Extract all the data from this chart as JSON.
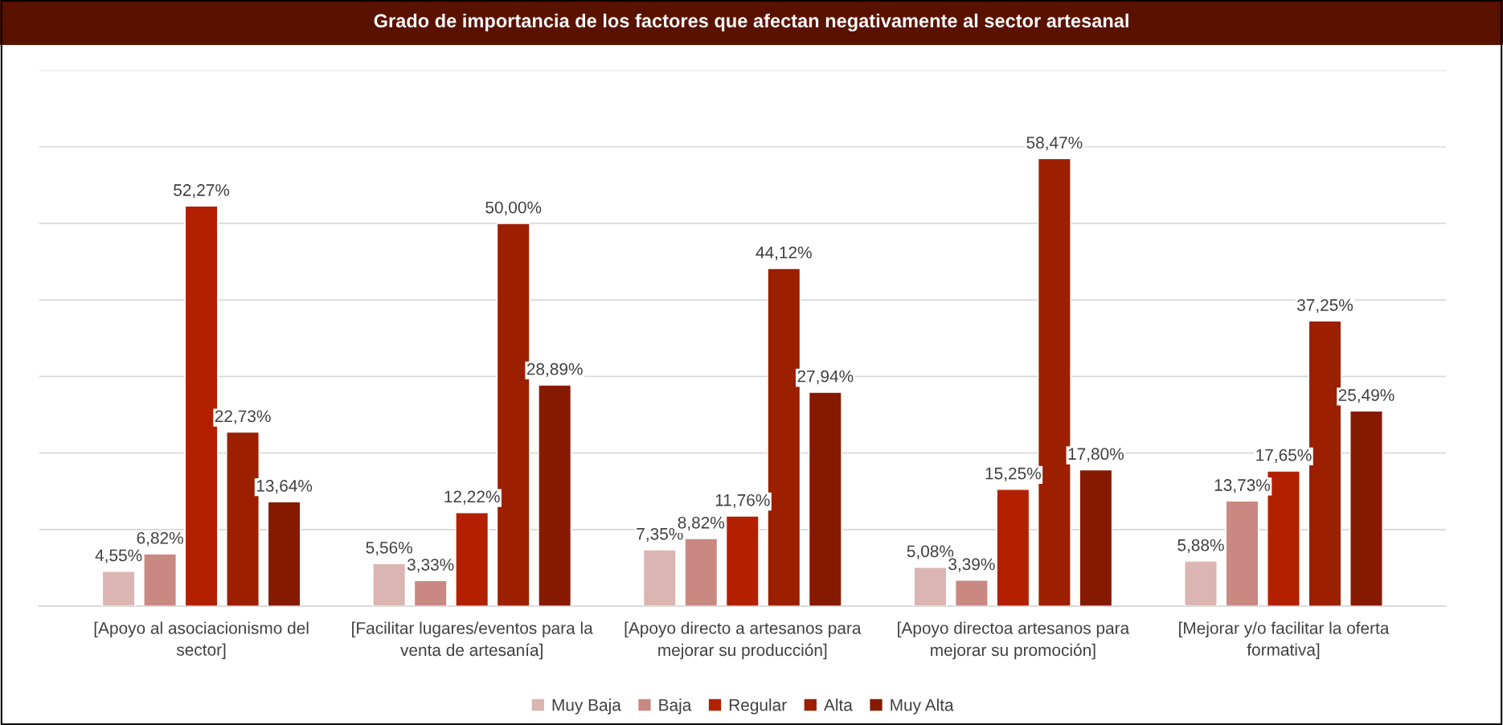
{
  "chart_data": {
    "type": "bar",
    "title": "Grado de importancia de los factores que afectan negativamente al sector artesanal",
    "categories": [
      "[Apoyo al asociacionismo del sector]",
      "[Facilitar lugares/eventos para la venta de artesanía]",
      "[Apoyo directo a artesanos para mejorar su producción]",
      "[Apoyo directoa artesanos para mejorar su promoción]",
      "[Mejorar y/o facilitar la oferta formativa]"
    ],
    "series": [
      {
        "name": "Muy Baja",
        "color": "#dbb5b1",
        "values": [
          4.55,
          5.56,
          7.35,
          5.08,
          5.88
        ],
        "value_labels": [
          "4,55%",
          "5,56%",
          "7,35%",
          "5,08%",
          "5,88%"
        ]
      },
      {
        "name": "Baja",
        "color": "#c98882",
        "values": [
          6.82,
          3.33,
          8.82,
          3.39,
          13.73
        ],
        "value_labels": [
          "6,82%",
          "3,33%",
          "8,82%",
          "3,39%",
          "13,73%"
        ]
      },
      {
        "name": "Regular",
        "color": "#b22000",
        "values": [
          52.27,
          12.22,
          11.76,
          15.25,
          17.65
        ],
        "value_labels": [
          "52,27%",
          "12,22%",
          "11,76%",
          "15,25%",
          "17,65%"
        ]
      },
      {
        "name": "Alta",
        "color": "#9c1f00",
        "values": [
          22.73,
          50.0,
          44.12,
          58.47,
          37.25
        ],
        "value_labels": [
          "22,73%",
          "50,00%",
          "44,12%",
          "58,47%",
          "37,25%"
        ]
      },
      {
        "name": "Muy Alta",
        "color": "#861a00",
        "values": [
          13.64,
          28.89,
          27.94,
          17.8,
          25.49
        ],
        "value_labels": [
          "13,64%",
          "28,89%",
          "27,94%",
          "17,80%",
          "25,49%"
        ]
      }
    ],
    "ylim": [
      0,
      70
    ],
    "yticks": [
      {
        "value": 0,
        "label": null
      },
      {
        "value": 10,
        "label": null
      },
      {
        "value": 20,
        "label": null
      },
      {
        "value": 30,
        "label": null
      },
      {
        "value": 40,
        "label": null
      },
      {
        "value": 50,
        "label": null
      },
      {
        "value": 60,
        "label": null
      },
      {
        "value": 70,
        "label": null
      }
    ],
    "grid": "y",
    "legend": "bottom",
    "tick_labels": "x"
  }
}
